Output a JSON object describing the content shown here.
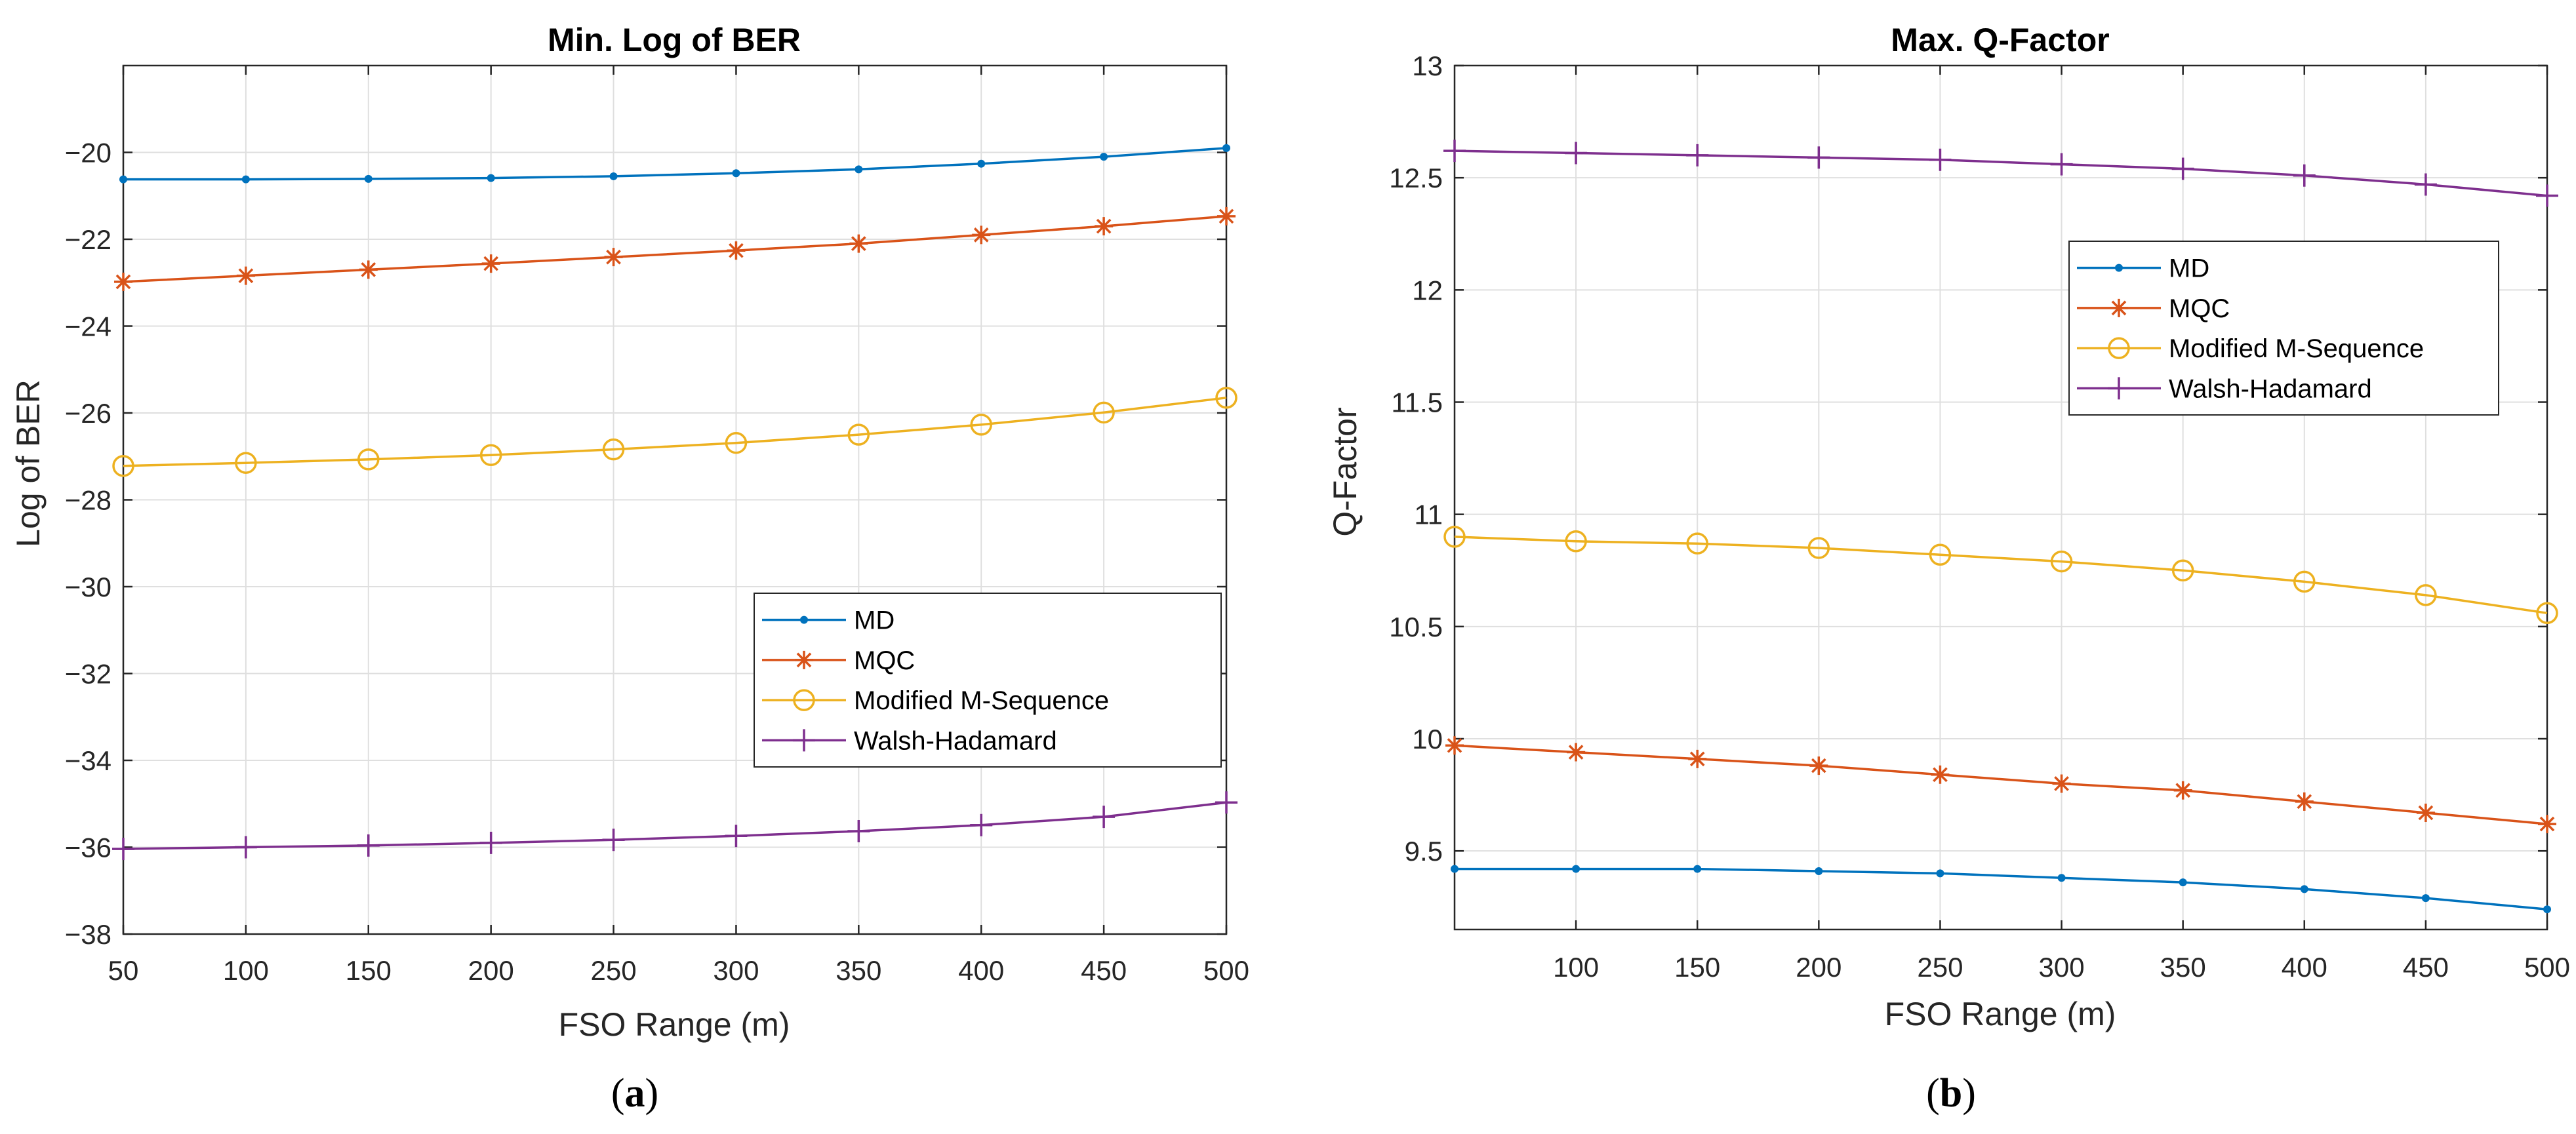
{
  "chart_data": [
    {
      "type": "line",
      "title": "Min. Log of BER",
      "xlabel": "FSO Range (m)",
      "ylabel": "Log of BER",
      "xlim": [
        50,
        500
      ],
      "ylim": [
        -38,
        -18
      ],
      "xticks": [
        50,
        100,
        150,
        200,
        250,
        300,
        350,
        400,
        450,
        500
      ],
      "yticks": [
        -38,
        -36,
        -34,
        -32,
        -30,
        -28,
        -26,
        -24,
        -22,
        -20
      ],
      "ytick_labels": [
        "−38",
        "−36",
        "−34",
        "−32",
        "−30",
        "−28",
        "−26",
        "−24",
        "−22",
        "−20"
      ],
      "grid": true,
      "legend_position": "center-right",
      "caption": {
        "open": "(",
        "letter": "a",
        "close": ")"
      },
      "x": [
        50,
        100,
        150,
        200,
        250,
        300,
        350,
        400,
        450,
        500
      ],
      "series": [
        {
          "name": "MD",
          "color": "#0072BD",
          "marker": "dot",
          "values": [
            -20.62,
            -20.62,
            -20.61,
            -20.59,
            -20.55,
            -20.48,
            -20.39,
            -20.26,
            -20.1,
            -19.9
          ]
        },
        {
          "name": "MQC",
          "color": "#D95319",
          "marker": "star",
          "values": [
            -22.98,
            -22.84,
            -22.7,
            -22.56,
            -22.41,
            -22.26,
            -22.1,
            -21.9,
            -21.7,
            -21.47
          ]
        },
        {
          "name": "Modified M-Sequence",
          "color": "#EDB120",
          "marker": "circle",
          "values": [
            -27.22,
            -27.15,
            -27.07,
            -26.97,
            -26.84,
            -26.69,
            -26.5,
            -26.27,
            -25.99,
            -25.65
          ]
        },
        {
          "name": "Walsh-Hadamard",
          "color": "#7E2F8E",
          "marker": "plus",
          "values": [
            -36.04,
            -36.0,
            -35.96,
            -35.9,
            -35.83,
            -35.74,
            -35.63,
            -35.49,
            -35.3,
            -34.97
          ]
        }
      ]
    },
    {
      "type": "line",
      "title": "Max. Q-Factor",
      "xlabel": "FSO Range (m)",
      "ylabel": "Q-Factor",
      "xlim": [
        50,
        500
      ],
      "ylim": [
        9.15,
        13.0
      ],
      "xticks": [
        100,
        150,
        200,
        250,
        300,
        350,
        400,
        450,
        500
      ],
      "yticks": [
        9.5,
        10,
        10.5,
        11,
        11.5,
        12,
        12.5,
        13
      ],
      "ytick_labels": [
        "9.5",
        "10",
        "10.5",
        "11",
        "11.5",
        "12",
        "12.5",
        "13"
      ],
      "grid": true,
      "legend_position": "top-right",
      "caption": {
        "open": "(",
        "letter": "b",
        "close": ")"
      },
      "x": [
        50,
        100,
        150,
        200,
        250,
        300,
        350,
        400,
        450,
        500
      ],
      "series": [
        {
          "name": "MD",
          "color": "#0072BD",
          "marker": "dot",
          "values": [
            9.42,
            9.42,
            9.42,
            9.41,
            9.4,
            9.38,
            9.36,
            9.33,
            9.29,
            9.24
          ]
        },
        {
          "name": "MQC",
          "color": "#D95319",
          "marker": "star",
          "values": [
            9.97,
            9.94,
            9.91,
            9.88,
            9.84,
            9.8,
            9.77,
            9.72,
            9.67,
            9.62
          ]
        },
        {
          "name": "Modified M-Sequence",
          "color": "#EDB120",
          "marker": "circle",
          "values": [
            10.9,
            10.88,
            10.87,
            10.85,
            10.82,
            10.79,
            10.75,
            10.7,
            10.64,
            10.56
          ]
        },
        {
          "name": "Walsh-Hadamard",
          "color": "#7E2F8E",
          "marker": "plus",
          "values": [
            12.62,
            12.61,
            12.6,
            12.59,
            12.58,
            12.56,
            12.54,
            12.51,
            12.47,
            12.42
          ]
        }
      ]
    }
  ]
}
